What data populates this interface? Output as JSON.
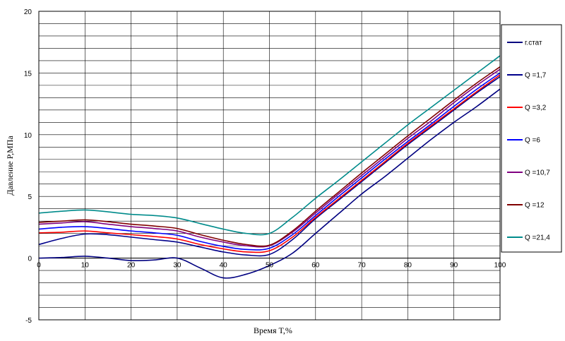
{
  "chart_data": {
    "type": "line",
    "title": "",
    "xlabel": "Время T,%",
    "ylabel": "Давление P,МПа",
    "xlim": [
      0,
      100
    ],
    "ylim": [
      -5,
      20
    ],
    "x_ticks": [
      "0",
      "10",
      "20",
      "30",
      "40",
      "50",
      "60",
      "70",
      "80",
      "90",
      "100"
    ],
    "y_ticks": [
      "-5",
      "0",
      "5",
      "10",
      "15",
      "20"
    ],
    "grid": true,
    "legend_position": "right",
    "series": [
      {
        "name": "г.стат",
        "color": "#000080",
        "x": [
          0,
          5,
          10,
          15,
          20,
          25,
          30,
          35,
          40,
          45,
          50,
          55,
          60,
          65,
          70,
          75,
          80,
          85,
          90,
          95,
          100
        ],
        "y": [
          0,
          0.05,
          0.15,
          0,
          -0.2,
          -0.15,
          0,
          -0.8,
          -1.6,
          -1.3,
          -0.6,
          0.4,
          2.0,
          3.6,
          5.2,
          6.6,
          8.1,
          9.6,
          11.0,
          12.3,
          13.7
        ]
      },
      {
        "name": "Q =1,7",
        "color": "#00008B",
        "x": [
          0,
          5,
          10,
          15,
          20,
          25,
          30,
          35,
          40,
          45,
          50,
          55,
          60,
          65,
          70,
          75,
          80,
          85,
          90,
          95,
          100
        ],
        "y": [
          1.1,
          1.6,
          1.95,
          1.9,
          1.7,
          1.5,
          1.3,
          0.9,
          0.5,
          0.25,
          0.3,
          1.5,
          3.2,
          4.7,
          6.2,
          7.7,
          9.2,
          10.6,
          12.0,
          13.4,
          14.7
        ]
      },
      {
        "name": "Q =3,2",
        "color": "#FF0000",
        "x": [
          0,
          5,
          10,
          15,
          20,
          25,
          30,
          35,
          40,
          45,
          50,
          55,
          60,
          65,
          70,
          75,
          80,
          85,
          90,
          95,
          100
        ],
        "y": [
          2.05,
          2.1,
          2.2,
          2.05,
          1.9,
          1.75,
          1.55,
          1.1,
          0.75,
          0.5,
          0.6,
          1.7,
          3.3,
          4.8,
          6.3,
          7.8,
          9.3,
          10.7,
          12.1,
          13.5,
          14.85
        ]
      },
      {
        "name": "Q =6",
        "color": "#0000FF",
        "x": [
          0,
          5,
          10,
          15,
          20,
          25,
          30,
          35,
          40,
          45,
          50,
          55,
          60,
          65,
          70,
          75,
          80,
          85,
          90,
          95,
          100
        ],
        "y": [
          2.35,
          2.5,
          2.55,
          2.4,
          2.2,
          2.05,
          1.85,
          1.35,
          0.95,
          0.7,
          0.8,
          1.9,
          3.45,
          5.0,
          6.5,
          8.0,
          9.45,
          10.85,
          12.3,
          13.7,
          15.0
        ]
      },
      {
        "name": "Q =10,7",
        "color": "#800080",
        "x": [
          0,
          5,
          10,
          15,
          20,
          25,
          30,
          35,
          40,
          45,
          50,
          55,
          60,
          65,
          70,
          75,
          80,
          85,
          90,
          95,
          100
        ],
        "y": [
          2.75,
          2.85,
          2.95,
          2.75,
          2.55,
          2.4,
          2.2,
          1.7,
          1.3,
          1.0,
          1.0,
          2.1,
          3.65,
          5.2,
          6.7,
          8.2,
          9.7,
          11.1,
          12.6,
          14.0,
          15.3
        ]
      },
      {
        "name": "Q =12",
        "color": "#800000",
        "x": [
          0,
          5,
          10,
          15,
          20,
          25,
          30,
          35,
          40,
          45,
          50,
          55,
          60,
          65,
          70,
          75,
          80,
          85,
          90,
          95,
          100
        ],
        "y": [
          2.9,
          3.0,
          3.1,
          2.95,
          2.75,
          2.6,
          2.4,
          1.9,
          1.45,
          1.1,
          1.05,
          2.2,
          3.8,
          5.35,
          6.9,
          8.4,
          9.9,
          11.35,
          12.8,
          14.2,
          15.5
        ]
      },
      {
        "name": "Q =21,4",
        "color": "#008B8B",
        "x": [
          0,
          5,
          10,
          15,
          20,
          25,
          30,
          35,
          40,
          45,
          50,
          55,
          60,
          65,
          70,
          75,
          80,
          85,
          90,
          95,
          100
        ],
        "y": [
          3.65,
          3.8,
          3.9,
          3.75,
          3.55,
          3.45,
          3.25,
          2.8,
          2.35,
          2.0,
          2.0,
          3.3,
          4.85,
          6.3,
          7.8,
          9.3,
          10.8,
          12.2,
          13.6,
          15.0,
          16.4
        ]
      }
    ]
  }
}
